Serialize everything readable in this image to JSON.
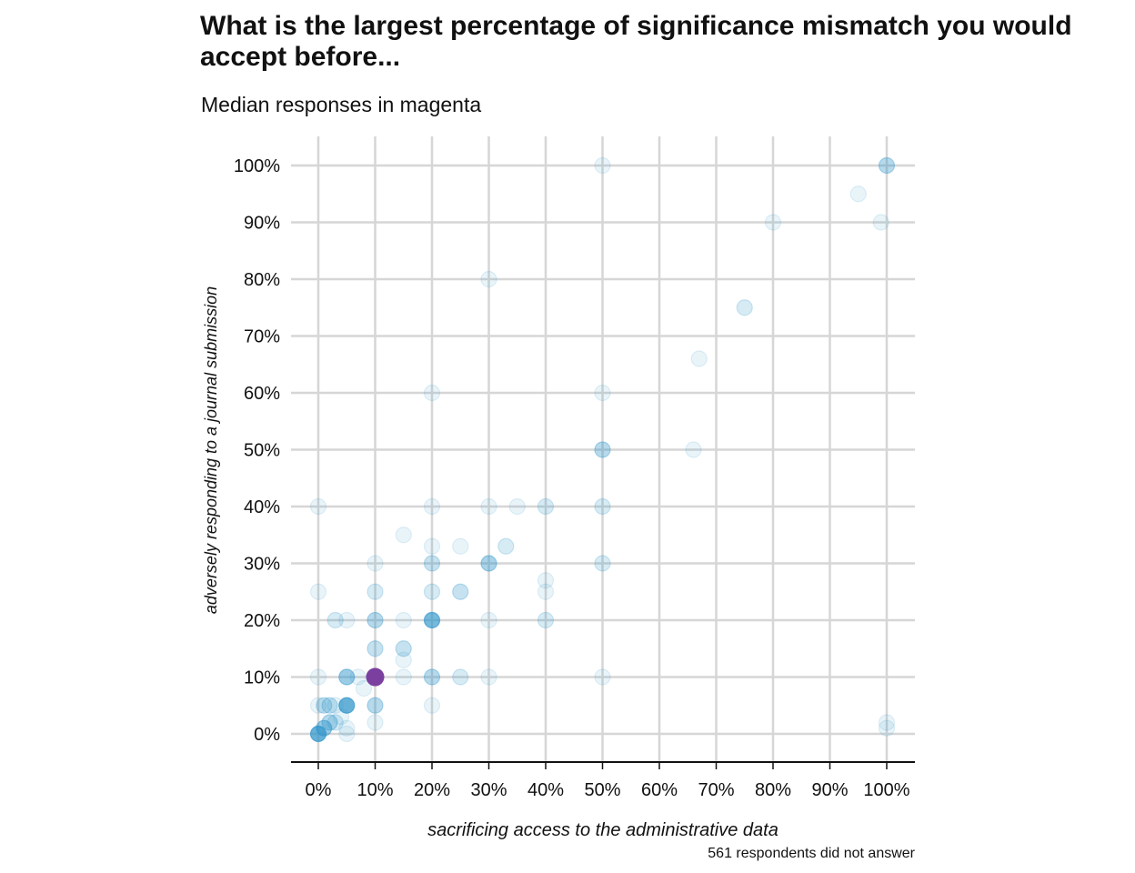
{
  "chart_data": {
    "type": "scatter",
    "title": "What is the largest percentage of significance mismatch you would accept before...",
    "subtitle": "Median responses in magenta",
    "xlabel": "sacrificing access to the administrative data",
    "ylabel": "adversely responding to a journal submission",
    "caption": "561 respondents did not answer",
    "xlim": [
      -5,
      104
    ],
    "ylim": [
      -5,
      105
    ],
    "xticks": [
      "0%",
      "10%",
      "20%",
      "30%",
      "40%",
      "50%",
      "60%",
      "70%",
      "80%",
      "90%",
      "100%"
    ],
    "yticks": [
      "0%",
      "10%",
      "20%",
      "30%",
      "40%",
      "50%",
      "60%",
      "70%",
      "80%",
      "90%",
      "100%"
    ],
    "grid": true,
    "point_color": "#2b93c9",
    "median_color": "#7b3fa0",
    "points": [
      {
        "x": 0,
        "y": 0,
        "n": 12
      },
      {
        "x": 1,
        "y": 1,
        "n": 6
      },
      {
        "x": 2,
        "y": 2,
        "n": 4
      },
      {
        "x": 3,
        "y": 2,
        "n": 2
      },
      {
        "x": 5,
        "y": 5,
        "n": 12
      },
      {
        "x": 1,
        "y": 5,
        "n": 3
      },
      {
        "x": 2,
        "y": 5,
        "n": 3
      },
      {
        "x": 0,
        "y": 5,
        "n": 1
      },
      {
        "x": 3,
        "y": 5,
        "n": 1
      },
      {
        "x": 4,
        "y": 3,
        "n": 1
      },
      {
        "x": 5,
        "y": 1,
        "n": 1
      },
      {
        "x": 5,
        "y": 0,
        "n": 1
      },
      {
        "x": 5,
        "y": 10,
        "n": 6
      },
      {
        "x": 0,
        "y": 10,
        "n": 1
      },
      {
        "x": 7,
        "y": 10,
        "n": 1
      },
      {
        "x": 8,
        "y": 8,
        "n": 1
      },
      {
        "x": 10,
        "y": 10,
        "n": 4
      },
      {
        "x": 10,
        "y": 5,
        "n": 4
      },
      {
        "x": 10,
        "y": 2,
        "n": 1
      },
      {
        "x": 10,
        "y": 15,
        "n": 3
      },
      {
        "x": 10,
        "y": 20,
        "n": 4
      },
      {
        "x": 10,
        "y": 25,
        "n": 2
      },
      {
        "x": 10,
        "y": 30,
        "n": 1
      },
      {
        "x": 0,
        "y": 25,
        "n": 1
      },
      {
        "x": 0,
        "y": 40,
        "n": 1
      },
      {
        "x": 3,
        "y": 20,
        "n": 2
      },
      {
        "x": 5,
        "y": 20,
        "n": 1
      },
      {
        "x": 15,
        "y": 10,
        "n": 1
      },
      {
        "x": 15,
        "y": 15,
        "n": 3
      },
      {
        "x": 15,
        "y": 13,
        "n": 1
      },
      {
        "x": 15,
        "y": 20,
        "n": 1
      },
      {
        "x": 15,
        "y": 35,
        "n": 1
      },
      {
        "x": 20,
        "y": 5,
        "n": 1
      },
      {
        "x": 20,
        "y": 10,
        "n": 4
      },
      {
        "x": 20,
        "y": 20,
        "n": 10
      },
      {
        "x": 20,
        "y": 25,
        "n": 2
      },
      {
        "x": 20,
        "y": 30,
        "n": 3
      },
      {
        "x": 20,
        "y": 33,
        "n": 1
      },
      {
        "x": 20,
        "y": 40,
        "n": 1
      },
      {
        "x": 20,
        "y": 60,
        "n": 1
      },
      {
        "x": 25,
        "y": 10,
        "n": 2
      },
      {
        "x": 25,
        "y": 25,
        "n": 3
      },
      {
        "x": 25,
        "y": 33,
        "n": 1
      },
      {
        "x": 30,
        "y": 10,
        "n": 1
      },
      {
        "x": 30,
        "y": 20,
        "n": 1
      },
      {
        "x": 30,
        "y": 30,
        "n": 5
      },
      {
        "x": 30,
        "y": 40,
        "n": 1
      },
      {
        "x": 30,
        "y": 80,
        "n": 1
      },
      {
        "x": 33,
        "y": 33,
        "n": 2
      },
      {
        "x": 35,
        "y": 40,
        "n": 1
      },
      {
        "x": 40,
        "y": 20,
        "n": 2
      },
      {
        "x": 40,
        "y": 25,
        "n": 1
      },
      {
        "x": 40,
        "y": 27,
        "n": 1
      },
      {
        "x": 40,
        "y": 40,
        "n": 2
      },
      {
        "x": 50,
        "y": 10,
        "n": 1
      },
      {
        "x": 50,
        "y": 30,
        "n": 2
      },
      {
        "x": 50,
        "y": 40,
        "n": 2
      },
      {
        "x": 50,
        "y": 50,
        "n": 4
      },
      {
        "x": 50,
        "y": 60,
        "n": 1
      },
      {
        "x": 50,
        "y": 100,
        "n": 1
      },
      {
        "x": 66,
        "y": 50,
        "n": 1
      },
      {
        "x": 67,
        "y": 66,
        "n": 1
      },
      {
        "x": 75,
        "y": 75,
        "n": 2
      },
      {
        "x": 80,
        "y": 90,
        "n": 1
      },
      {
        "x": 95,
        "y": 95,
        "n": 1
      },
      {
        "x": 99,
        "y": 90,
        "n": 1
      },
      {
        "x": 100,
        "y": 100,
        "n": 4
      },
      {
        "x": 100,
        "y": 2,
        "n": 1
      },
      {
        "x": 100,
        "y": 1,
        "n": 1
      }
    ],
    "medians": [
      {
        "x": 10,
        "y": 10
      }
    ]
  }
}
